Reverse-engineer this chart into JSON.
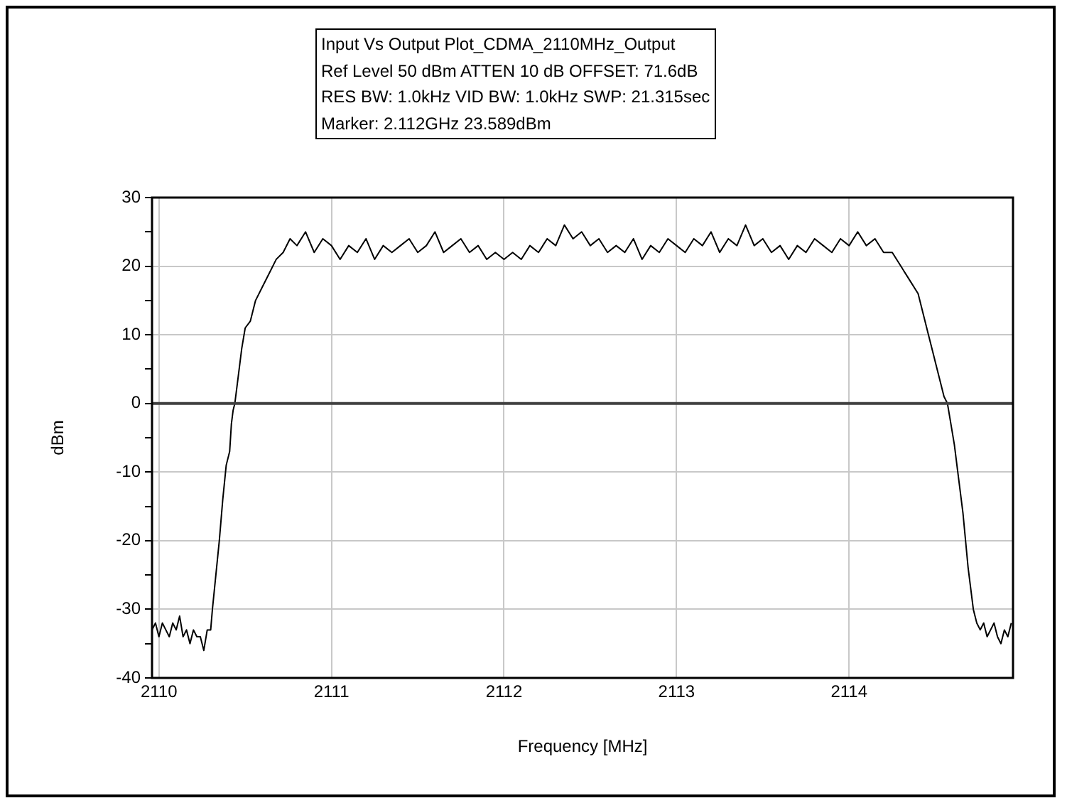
{
  "chart_data": {
    "type": "line",
    "title": "Input Vs Output Plot_CDMA_2110MHz_Output",
    "annotations": [
      "Ref Level 50 dBm    ATTEN 10 dB    OFFSET: 71.6dB",
      "RES BW: 1.0kHz  VID BW: 1.0kHz  SWP: 21.315sec",
      "Marker: 2.112GHz  23.589dBm"
    ],
    "xlabel": "Frequency [MHz]",
    "ylabel": "dBm",
    "xlim": [
      2109.96,
      2114.95
    ],
    "xticks": [
      2110,
      2111,
      2112,
      2113,
      2114
    ],
    "ylim": [
      -40,
      30
    ],
    "yticks": [
      -40,
      {
        "value": -35,
        "label": null
      },
      -30,
      {
        "value": -25,
        "label": null
      },
      -20,
      {
        "value": -15,
        "label": null
      },
      -10,
      {
        "value": -5,
        "label": null
      },
      0,
      {
        "value": 5,
        "label": null
      },
      10,
      {
        "value": 15,
        "label": null
      },
      20,
      {
        "value": 25,
        "label": null
      },
      30
    ],
    "grid": true,
    "ref_lines": [
      {
        "axis": "y",
        "value": 0,
        "color": "#404040"
      }
    ],
    "series": [
      {
        "color": "#000000",
        "x": [
          2109.96,
          2109.98,
          2110.0,
          2110.02,
          2110.04,
          2110.06,
          2110.08,
          2110.1,
          2110.12,
          2110.14,
          2110.16,
          2110.18,
          2110.2,
          2110.22,
          2110.24,
          2110.26,
          2110.28,
          2110.3,
          2110.31,
          2110.33,
          2110.35,
          2110.37,
          2110.39,
          2110.41,
          2110.42,
          2110.43,
          2110.44,
          2110.46,
          2110.48,
          2110.5,
          2110.53,
          2110.56,
          2110.6,
          2110.64,
          2110.68,
          2110.72,
          2110.76,
          2110.8,
          2110.85,
          2110.9,
          2110.95,
          2111.0,
          2111.05,
          2111.1,
          2111.15,
          2111.2,
          2111.25,
          2111.3,
          2111.35,
          2111.4,
          2111.45,
          2111.5,
          2111.55,
          2111.6,
          2111.65,
          2111.7,
          2111.75,
          2111.8,
          2111.85,
          2111.9,
          2111.95,
          2112.0,
          2112.05,
          2112.1,
          2112.15,
          2112.2,
          2112.25,
          2112.3,
          2112.35,
          2112.4,
          2112.45,
          2112.5,
          2112.55,
          2112.6,
          2112.65,
          2112.7,
          2112.75,
          2112.8,
          2112.85,
          2112.9,
          2112.95,
          2113.0,
          2113.05,
          2113.1,
          2113.15,
          2113.2,
          2113.25,
          2113.3,
          2113.35,
          2113.4,
          2113.45,
          2113.5,
          2113.55,
          2113.6,
          2113.65,
          2113.7,
          2113.75,
          2113.8,
          2113.85,
          2113.9,
          2113.95,
          2114.0,
          2114.05,
          2114.1,
          2114.15,
          2114.2,
          2114.25,
          2114.3,
          2114.35,
          2114.4,
          2114.43,
          2114.46,
          2114.49,
          2114.52,
          2114.55,
          2114.57,
          2114.59,
          2114.61,
          2114.63,
          2114.66,
          2114.69,
          2114.72,
          2114.74,
          2114.76,
          2114.78,
          2114.8,
          2114.82,
          2114.84,
          2114.86,
          2114.88,
          2114.9,
          2114.92,
          2114.94
        ],
        "values": [
          -33,
          -32,
          -34,
          -32,
          -33,
          -34,
          -32,
          -33,
          -31,
          -34,
          -33,
          -35,
          -33,
          -34,
          -34,
          -36,
          -33,
          -33,
          -30,
          -25,
          -20,
          -14,
          -9,
          -7,
          -3,
          -1,
          0,
          4,
          8,
          11,
          12,
          15,
          17,
          19,
          21,
          22,
          24,
          23,
          25,
          22,
          24,
          23,
          21,
          23,
          22,
          24,
          21,
          23,
          22,
          23,
          24,
          22,
          23,
          25,
          22,
          23,
          24,
          22,
          23,
          21,
          22,
          21,
          22,
          21,
          23,
          22,
          24,
          23,
          26,
          24,
          25,
          23,
          24,
          22,
          23,
          22,
          24,
          21,
          23,
          22,
          24,
          23,
          22,
          24,
          23,
          25,
          22,
          24,
          23,
          26,
          23,
          24,
          22,
          23,
          21,
          23,
          22,
          24,
          23,
          22,
          24,
          23,
          25,
          23,
          24,
          22,
          22,
          20,
          18,
          16,
          13,
          10,
          7,
          4,
          1,
          0,
          -3,
          -6,
          -10,
          -16,
          -24,
          -30,
          -32,
          -33,
          -32,
          -34,
          -33,
          -32,
          -34,
          -35,
          -33,
          -34,
          -32
        ]
      }
    ]
  }
}
